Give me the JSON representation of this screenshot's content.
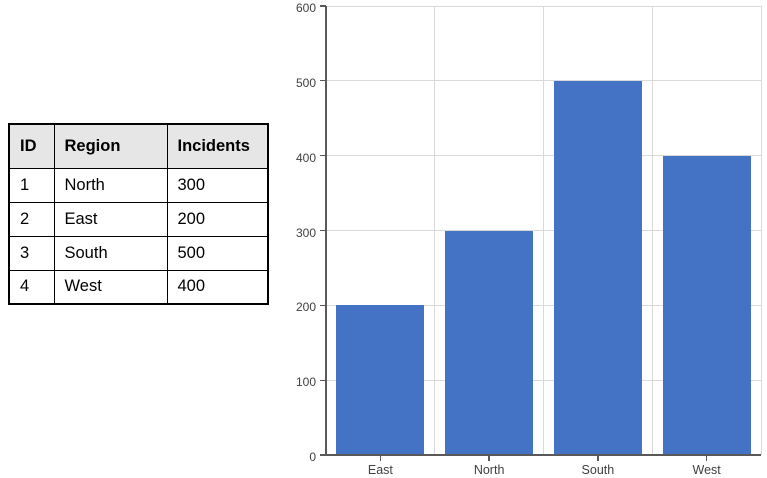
{
  "table": {
    "headers": [
      "ID",
      "Region",
      "Incidents"
    ],
    "rows": [
      {
        "id": "1",
        "region": "North",
        "incidents": "300"
      },
      {
        "id": "2",
        "region": "East",
        "incidents": "200"
      },
      {
        "id": "3",
        "region": "South",
        "incidents": "500"
      },
      {
        "id": "4",
        "region": "West",
        "incidents": "400"
      }
    ],
    "header_fill": "#e7e6e6",
    "border_color": "#000000",
    "text_color": "#000000"
  },
  "chart_data": {
    "type": "bar",
    "categories": [
      "East",
      "North",
      "South",
      "West"
    ],
    "values": [
      200,
      300,
      500,
      400
    ],
    "title": "",
    "xlabel": "",
    "ylabel": "",
    "ylim": [
      0,
      600
    ],
    "yticks": [
      0,
      100,
      200,
      300,
      400,
      500,
      600
    ],
    "grid": true,
    "legend": false,
    "bar_color": "#4472c4",
    "gridline_color": "#d9d9d9",
    "axis_color": "#595959",
    "label_color": "#404040"
  }
}
